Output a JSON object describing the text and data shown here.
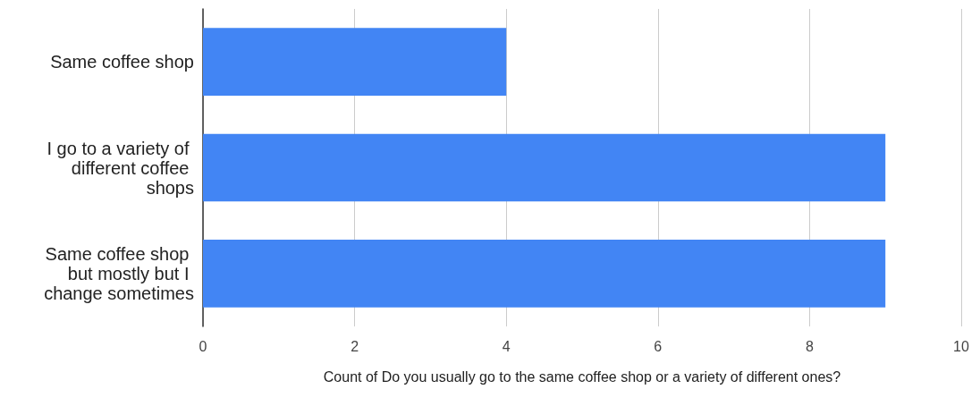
{
  "chart_data": {
    "type": "bar",
    "orientation": "horizontal",
    "categories": [
      "Same coffee shop",
      "I go to a variety of different coffee shops",
      "Same coffee shop but mostly but I change sometimes"
    ],
    "values": [
      4,
      9,
      9
    ],
    "color": "#4285f4",
    "xlabel": "Count of Do you usually go to the same coffee shop or a variety of different ones?",
    "xlim": [
      0,
      10
    ],
    "xticks": [
      0,
      2,
      4,
      6,
      8,
      10
    ],
    "grid": "x"
  }
}
